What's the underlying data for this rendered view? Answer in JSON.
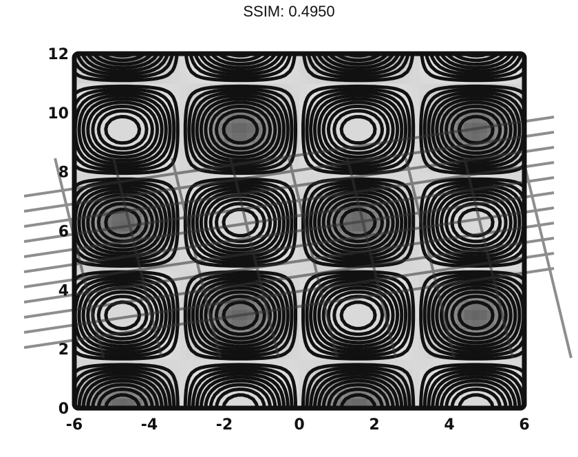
{
  "title": "SSIM: 0.4950",
  "chart_data": {
    "type": "contour",
    "title": "SSIM: 0.4950",
    "xlabel": "",
    "ylabel": "",
    "xlim": [
      -6,
      6
    ],
    "ylim": [
      0,
      12
    ],
    "x_ticks": [
      "-6",
      "-4",
      "-2",
      "0",
      "2",
      "4",
      "6"
    ],
    "y_ticks": [
      "0",
      "2",
      "4",
      "6",
      "8",
      "10",
      "12"
    ],
    "grid": false,
    "colors": {
      "fill": "#d9d9d9",
      "dark": "#6e6e6e",
      "line": "#111111"
    },
    "function": "sin(x) * cos(y)",
    "contour_levels": [
      -0.9,
      -0.8,
      -0.7,
      -0.6,
      -0.5,
      -0.4,
      -0.3,
      -0.2,
      -0.1,
      0.1,
      0.2,
      0.3,
      0.4,
      0.5,
      0.6,
      0.7,
      0.8,
      0.9
    ]
  }
}
